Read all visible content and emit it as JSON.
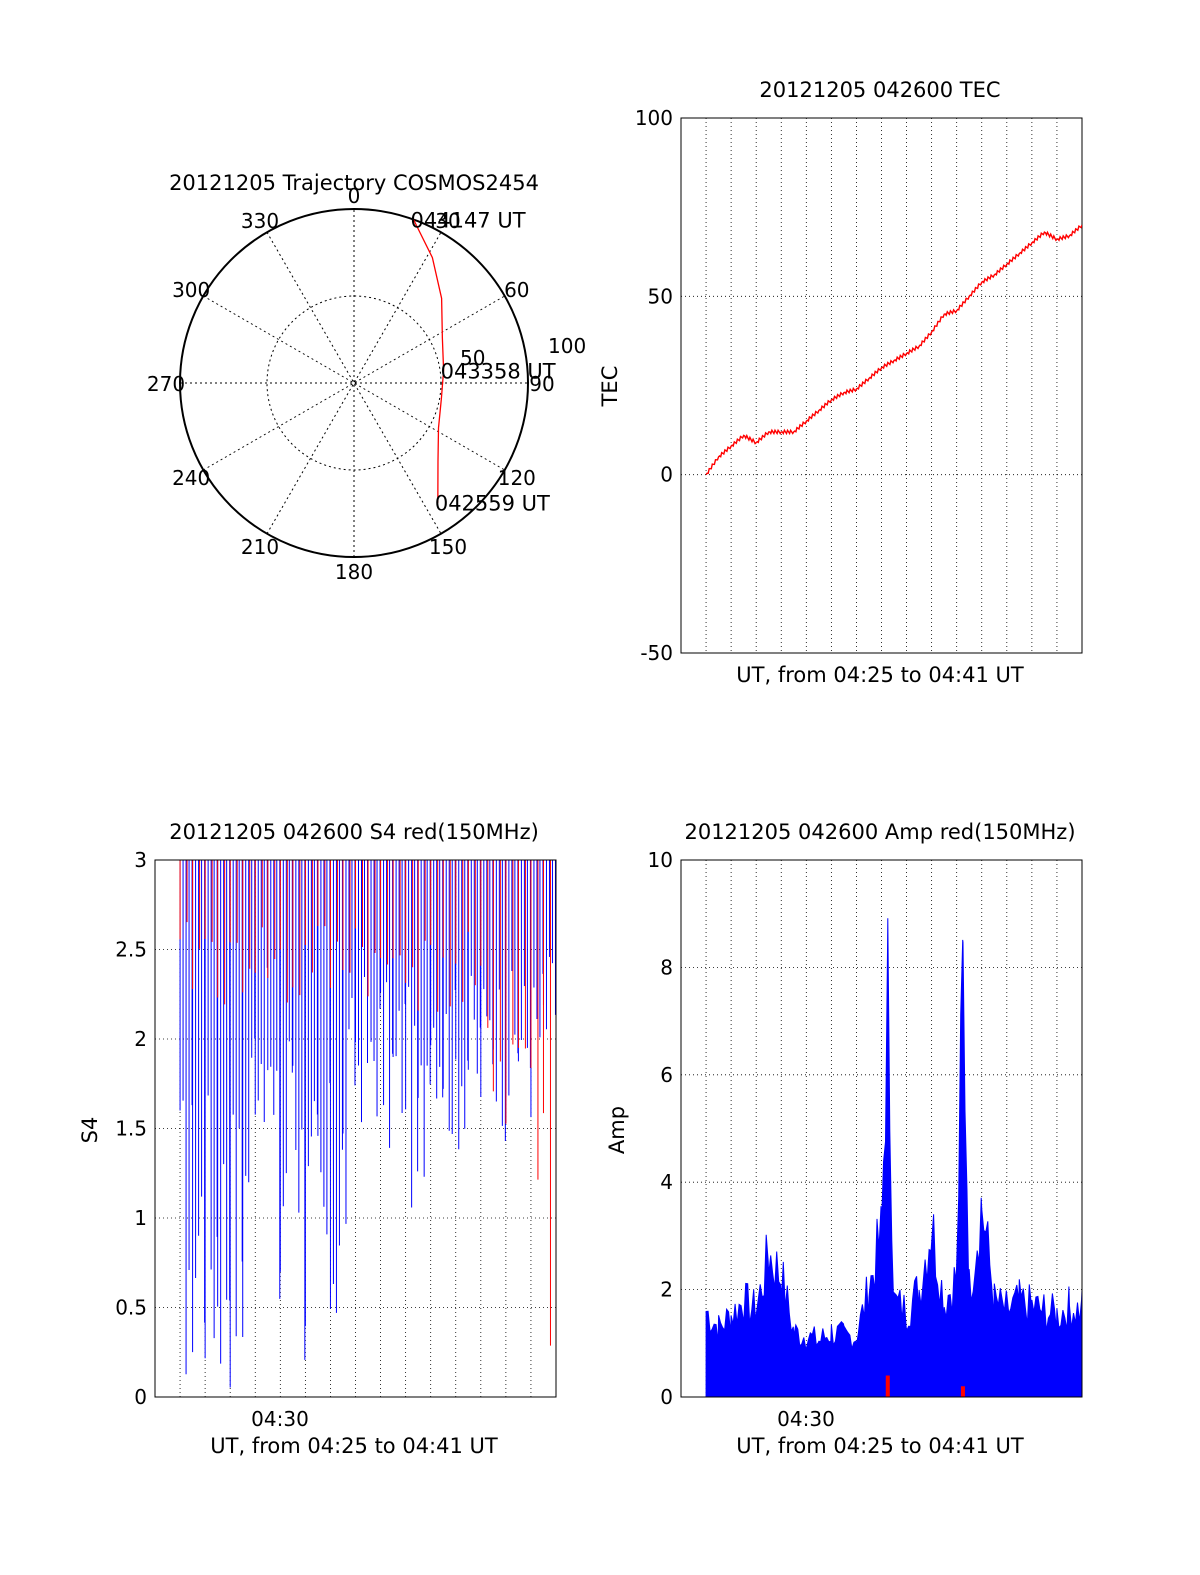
{
  "chart_data": [
    {
      "type": "polar",
      "title": "20121205 Trajectory COSMOS2454",
      "azimuth_labels": [
        "0",
        "30",
        "60",
        "90",
        "120",
        "150",
        "180",
        "210",
        "240",
        "270",
        "300",
        "330"
      ],
      "radial_labels": [
        "50",
        "100"
      ],
      "series": [
        {
          "color": "#ff0000",
          "points": [
            {
              "az": 20,
              "el": 0
            },
            {
              "az": 32,
              "el": 15
            },
            {
              "az": 46,
              "el": 30
            },
            {
              "az": 63,
              "el": 43
            },
            {
              "az": 82,
              "el": 48
            },
            {
              "az": 100,
              "el": 49
            },
            {
              "az": 118,
              "el": 45
            },
            {
              "az": 133,
              "el": 34
            },
            {
              "az": 145,
              "el": 16
            }
          ]
        }
      ],
      "annotations": [
        {
          "text": "044147 UT",
          "az": 20,
          "el": 0
        },
        {
          "text": "043358 UT",
          "az": 82,
          "el": 48
        },
        {
          "text": "042559 UT",
          "az": 145,
          "el": 16
        }
      ],
      "colors": {
        "trajectory": "#ff0000",
        "grid": "#000000"
      }
    },
    {
      "type": "line",
      "title": "20121205 042600 TEC",
      "xlabel": "UT, from 04:25 to 04:41 UT",
      "ylabel": "TEC",
      "xlim": [
        "04:25",
        "04:41"
      ],
      "ylim": [
        -50,
        100
      ],
      "yticks": [
        "100",
        "50",
        "0",
        "-50"
      ],
      "grid": true,
      "series": [
        {
          "color": "#ff0000",
          "x": [
            "04:26:00",
            "04:26:30",
            "04:27:00",
            "04:27:30",
            "04:28:00",
            "04:28:30",
            "04:29:00",
            "04:29:30",
            "04:30:00",
            "04:30:30",
            "04:31:00",
            "04:31:30",
            "04:32:00",
            "04:32:30",
            "04:33:00",
            "04:33:30",
            "04:34:00",
            "04:34:30",
            "04:35:00",
            "04:35:30",
            "04:36:00",
            "04:36:30",
            "04:37:00",
            "04:37:30",
            "04:38:00",
            "04:38:30",
            "04:39:00",
            "04:39:30",
            "04:40:00",
            "04:40:30",
            "04:41:00"
          ],
          "y": [
            0,
            5,
            8,
            11,
            9,
            12,
            12,
            12,
            15,
            18,
            21,
            23,
            24,
            27,
            30,
            32,
            34,
            36,
            40,
            45,
            46,
            50,
            54,
            56,
            59,
            62,
            65,
            68,
            66,
            67,
            70
          ]
        }
      ]
    },
    {
      "type": "line",
      "title": "20121205 042600 S4 red(150MHz)",
      "xlabel": "UT, from 04:25 to 04:41 UT",
      "ylabel": "S4",
      "xlim": [
        "04:25",
        "04:41"
      ],
      "ylim": [
        0,
        3
      ],
      "yticks": [
        "3",
        "2.5",
        "2",
        "1.5",
        "1",
        "0.5",
        "0"
      ],
      "xticks": [
        "04:30"
      ],
      "grid": true,
      "series": [
        {
          "color": "#0000ff",
          "x": [
            "04:26:00",
            "04:26:30",
            "04:27:00",
            "04:27:30",
            "04:28:00",
            "04:28:30",
            "04:29:00",
            "04:29:30",
            "04:30:00",
            "04:30:30",
            "04:31:00",
            "04:31:30",
            "04:32:00",
            "04:32:30",
            "04:33:00",
            "04:33:30",
            "04:34:00",
            "04:34:30",
            "04:35:00",
            "04:35:30",
            "04:36:00",
            "04:36:30",
            "04:37:00",
            "04:37:30",
            "04:38:00",
            "04:38:30",
            "04:39:00",
            "04:39:30",
            "04:40:00",
            "04:40:30",
            "04:41:00"
          ],
          "y_max": [
            3,
            3,
            3,
            3,
            3,
            3,
            3,
            3,
            3,
            3,
            3,
            3,
            3,
            3,
            3,
            3,
            3,
            3,
            3,
            3,
            3,
            3,
            3,
            3,
            3,
            3,
            3,
            3,
            3,
            3,
            3
          ],
          "y_min": [
            0,
            0,
            0,
            0,
            0,
            0,
            1.5,
            1.5,
            0,
            1.5,
            0,
            0,
            0,
            0.4,
            1.5,
            1.5,
            1.5,
            1.2,
            1.5,
            0.5,
            1.8,
            1.5,
            1.3,
            1.5,
            1.4,
            1.7,
            1.4,
            1.6,
            1.5,
            1.7,
            1.9
          ]
        },
        {
          "color": "#ff0000",
          "x": [
            "04:26:00",
            "04:26:30",
            "04:27:00",
            "04:27:30",
            "04:28:00",
            "04:28:30",
            "04:29:00",
            "04:29:30",
            "04:30:00",
            "04:30:30",
            "04:31:00",
            "04:31:30",
            "04:32:00",
            "04:32:30",
            "04:33:00",
            "04:33:30",
            "04:34:00",
            "04:34:30",
            "04:35:00",
            "04:35:30",
            "04:36:00",
            "04:36:30",
            "04:37:00",
            "04:37:30",
            "04:38:00",
            "04:38:30",
            "04:39:00",
            "04:39:30",
            "04:40:00",
            "04:40:30",
            "04:41:00"
          ],
          "y_max": [
            3,
            3,
            3,
            3,
            3,
            3,
            3,
            3,
            3,
            3,
            3,
            3,
            3,
            3,
            3,
            3,
            3,
            3,
            3,
            3,
            3,
            3,
            3,
            3,
            3,
            3,
            3,
            3,
            3,
            3,
            3
          ],
          "y_min": [
            2.1,
            2.2,
            2.3,
            2.2,
            2.0,
            2.2,
            2.3,
            2.2,
            2.1,
            2.0,
            2.2,
            2.3,
            2.1,
            2.2,
            2.4,
            2.2,
            2.0,
            2.2,
            2.3,
            2.1,
            2.0,
            2.2,
            1.9,
            2.0,
            1.7,
            1.6,
            1.3,
            1.5,
            1.4,
            0,
            0
          ]
        }
      ]
    },
    {
      "type": "line",
      "title": "20121205 042600 Amp red(150MHz)",
      "xlabel": "UT, from 04:25 to 04:41 UT",
      "ylabel": "Amp",
      "xlim": [
        "04:25",
        "04:41"
      ],
      "ylim": [
        0,
        10
      ],
      "yticks": [
        "10",
        "8",
        "6",
        "4",
        "2",
        "0"
      ],
      "xticks": [
        "04:30"
      ],
      "grid": true,
      "series": [
        {
          "color": "#0000ff",
          "x": [
            "04:26:00",
            "04:26:30",
            "04:27:00",
            "04:27:30",
            "04:28:00",
            "04:28:30",
            "04:29:00",
            "04:29:30",
            "04:30:00",
            "04:30:30",
            "04:31:00",
            "04:31:30",
            "04:32:00",
            "04:32:30",
            "04:33:00",
            "04:33:15",
            "04:33:30",
            "04:34:00",
            "04:34:30",
            "04:35:00",
            "04:35:30",
            "04:36:00",
            "04:36:15",
            "04:36:30",
            "04:37:00",
            "04:37:30",
            "04:38:00",
            "04:38:30",
            "04:39:00",
            "04:39:30",
            "04:40:00",
            "04:40:30",
            "04:41:00"
          ],
          "y": [
            2.0,
            1.6,
            1.9,
            2.2,
            2.0,
            3.3,
            2.8,
            1.5,
            1.4,
            1.3,
            1.5,
            1.4,
            1.4,
            2.5,
            3.8,
            9.3,
            2.2,
            2.0,
            2.5,
            4.0,
            2.2,
            2.8,
            9.9,
            2.5,
            4.5,
            2.2,
            2.0,
            2.2,
            2.1,
            2.0,
            1.9,
            2.1,
            2.0
          ]
        },
        {
          "color": "#ff0000",
          "x": [
            "04:33:15",
            "04:36:15"
          ],
          "y": [
            0.4,
            0.2
          ]
        }
      ]
    }
  ]
}
